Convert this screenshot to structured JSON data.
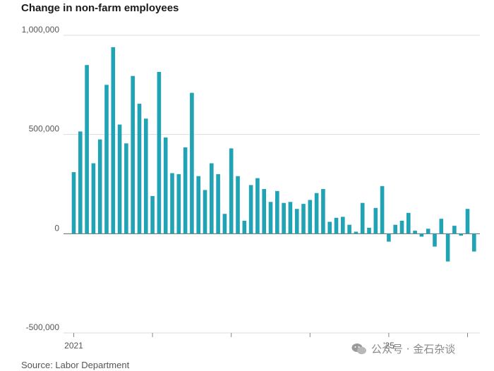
{
  "chart_data": {
    "type": "bar",
    "title": "Change in non-farm employees",
    "xlabel": "",
    "ylabel": "",
    "ylim": [
      -500000,
      1000000
    ],
    "y_ticks": [
      {
        "value": 1000000,
        "label": "1,000,000"
      },
      {
        "value": 500000,
        "label": "500,000"
      },
      {
        "value": 0,
        "label": "0"
      },
      {
        "value": -500000,
        "label": "-500,000"
      }
    ],
    "x_tick_labels": [
      {
        "index": 0,
        "label": "2021"
      },
      {
        "index": 48,
        "label": "’25"
      }
    ],
    "bar_color": "#1fa3b5",
    "grid": true,
    "values": [
      310000,
      515000,
      850000,
      355000,
      475000,
      750000,
      940000,
      550000,
      455000,
      795000,
      655000,
      580000,
      190000,
      815000,
      485000,
      305000,
      300000,
      435000,
      710000,
      290000,
      220000,
      355000,
      300000,
      100000,
      430000,
      290000,
      65000,
      245000,
      280000,
      225000,
      160000,
      215000,
      155000,
      160000,
      125000,
      150000,
      170000,
      205000,
      225000,
      60000,
      80000,
      85000,
      45000,
      10000,
      155000,
      30000,
      130000,
      240000,
      -40000,
      45000,
      65000,
      105000,
      15000,
      -15000,
      25000,
      -65000,
      75000,
      -140000,
      40000,
      -10000,
      125000,
      -90000
    ]
  },
  "source": "Source: Labor Department",
  "watermark": "公众号 · 金石杂谈"
}
